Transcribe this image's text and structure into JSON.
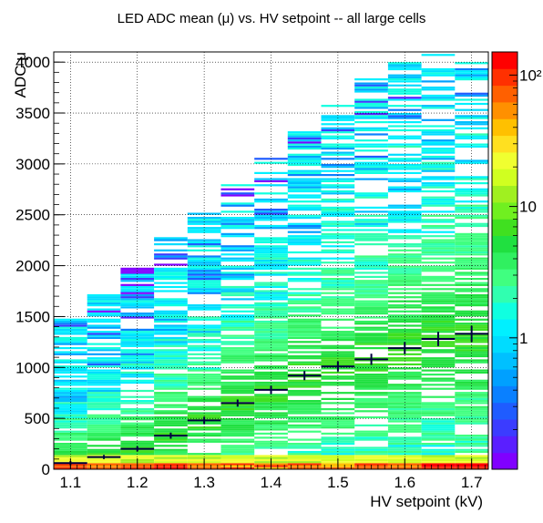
{
  "chart_data": {
    "type": "heatmap",
    "title": "LED ADC mean (μ) vs. HV setpoint -- all large cells",
    "xlabel": "HV setpoint (kV)",
    "ylabel": "ADC μ",
    "xlim": [
      1.075,
      1.725
    ],
    "ylim": [
      0,
      4100
    ],
    "x_ticks": [
      "1.1",
      "1.2",
      "1.3",
      "1.4",
      "1.5",
      "1.6",
      "1.7"
    ],
    "y_ticks": [
      "0",
      "500",
      "1000",
      "1500",
      "2000",
      "2500",
      "3000",
      "3500",
      "4000"
    ],
    "grid": true,
    "colorbar": {
      "scale": "log",
      "range": [
        0.1,
        150
      ],
      "ticks": [
        "1",
        "10",
        "10²"
      ],
      "palette": [
        "#8000ff",
        "#5a1fff",
        "#3b3cff",
        "#1f5cff",
        "#0a80ff",
        "#00a0ff",
        "#00c0ff",
        "#00dcff",
        "#00f0ff",
        "#10ffe0",
        "#30ffb0",
        "#40ff80",
        "#30f060",
        "#20e040",
        "#40e020",
        "#70f020",
        "#a0f020",
        "#d0ff20",
        "#f0ff30",
        "#ffe020",
        "#ffc000",
        "#ff9000",
        "#ff6000",
        "#ff3000",
        "#ff0000"
      ]
    },
    "profile": {
      "x": [
        1.1,
        1.15,
        1.2,
        1.25,
        1.3,
        1.35,
        1.4,
        1.45,
        1.5,
        1.55,
        1.6,
        1.65,
        1.7
      ],
      "y": [
        60,
        120,
        200,
        330,
        480,
        650,
        780,
        920,
        1010,
        1080,
        1190,
        1280,
        1330
      ],
      "yerr": [
        20,
        20,
        25,
        30,
        35,
        35,
        40,
        45,
        50,
        55,
        60,
        70,
        80
      ]
    }
  }
}
